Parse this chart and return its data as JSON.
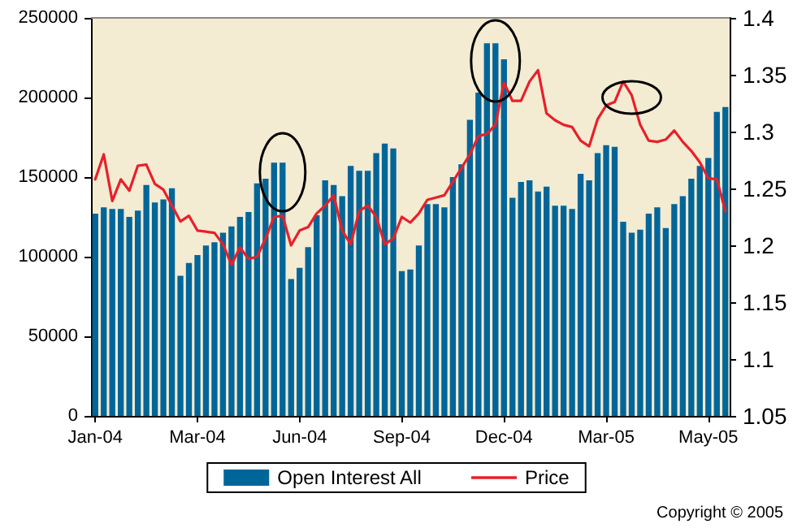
{
  "chart_data": {
    "type": "bar",
    "categories": [
      "Jan-04",
      null,
      null,
      null,
      null,
      null,
      null,
      null,
      null,
      null,
      null,
      null,
      "Mar-04",
      null,
      null,
      null,
      null,
      null,
      null,
      null,
      null,
      null,
      null,
      null,
      "Jun-04",
      null,
      null,
      null,
      null,
      null,
      null,
      null,
      null,
      null,
      null,
      null,
      "Sep-04",
      null,
      null,
      null,
      null,
      null,
      null,
      null,
      null,
      null,
      null,
      null,
      "Dec-04",
      null,
      null,
      null,
      null,
      null,
      null,
      null,
      null,
      null,
      null,
      null,
      "Mar-05",
      null,
      null,
      null,
      null,
      null,
      null,
      null,
      null,
      null,
      null,
      null,
      "May-05",
      null,
      null
    ],
    "series": [
      {
        "name": "Open Interest All",
        "color": "#006699",
        "values": [
          127000,
          131000,
          130000,
          130000,
          125000,
          129000,
          145000,
          134000,
          136000,
          143000,
          88000,
          96000,
          101000,
          107000,
          109000,
          115000,
          119000,
          125000,
          128000,
          146000,
          149000,
          159000,
          159000,
          86000,
          93000,
          106000,
          126000,
          148000,
          145000,
          138000,
          157000,
          154000,
          154000,
          165000,
          171000,
          168000,
          91000,
          92000,
          107000,
          133000,
          133000,
          131000,
          150000,
          158000,
          186000,
          203000,
          234000,
          234000,
          224000,
          137000,
          147000,
          148000,
          141000,
          144000,
          132000,
          132000,
          130000,
          152000,
          148000,
          165000,
          170000,
          169000,
          122000,
          115000,
          117000,
          127000,
          131000,
          118000,
          133000,
          138000,
          149000,
          157000,
          162000,
          191000,
          194000
        ]
      },
      {
        "name": "Price",
        "type": "line",
        "axis": "y2",
        "color": "#e8202a",
        "values": [
          1.258,
          1.28,
          1.239,
          1.258,
          1.248,
          1.27,
          1.271,
          1.254,
          1.249,
          1.235,
          1.221,
          1.226,
          1.213,
          1.212,
          1.211,
          1.201,
          1.183,
          1.198,
          1.188,
          1.19,
          1.206,
          1.225,
          1.226,
          1.2,
          1.213,
          1.216,
          1.228,
          1.235,
          1.244,
          1.213,
          1.201,
          1.23,
          1.235,
          1.225,
          1.201,
          1.206,
          1.225,
          1.22,
          1.228,
          1.24,
          1.242,
          1.244,
          1.256,
          1.268,
          1.28,
          1.296,
          1.298,
          1.306,
          1.343,
          1.327,
          1.327,
          1.344,
          1.354,
          1.316,
          1.31,
          1.306,
          1.304,
          1.292,
          1.287,
          1.311,
          1.323,
          1.326,
          1.344,
          1.332,
          1.306,
          1.292,
          1.291,
          1.293,
          1.301,
          1.291,
          1.283,
          1.273,
          1.259,
          1.258,
          1.23
        ]
      }
    ],
    "ylim": [
      0,
      250000
    ],
    "yticks": [
      0,
      50000,
      100000,
      150000,
      200000,
      250000
    ],
    "y2lim": [
      1.05,
      1.4
    ],
    "y2ticks": [
      1.05,
      1.1,
      1.15,
      1.2,
      1.25,
      1.3,
      1.35,
      1.4
    ],
    "grid": false,
    "legend": "bottom",
    "marker": "none",
    "line_style": "solid",
    "annotations": [
      "Copyright © 2005"
    ]
  }
}
